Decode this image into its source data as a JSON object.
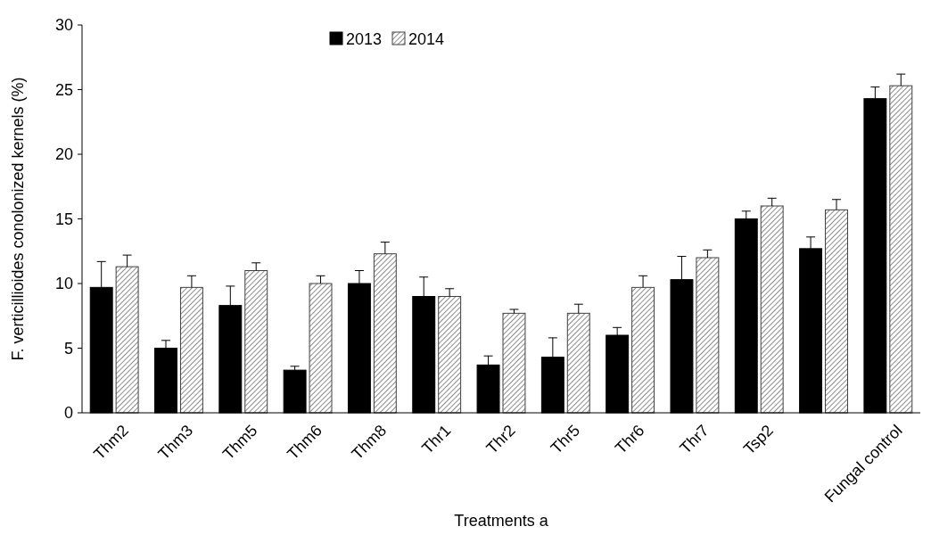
{
  "chart_data": {
    "type": "bar",
    "xlabel": "Treatments a",
    "ylabel": "F. verticillioides conolonized kernels (%)",
    "categories": [
      "Thm2",
      "Thm3",
      "Thm5",
      "Thm6",
      "Thm8",
      "Thr1",
      "Thr2",
      "Thr5",
      "Thr6",
      "Thr7",
      "Tsp2",
      null,
      "Fungal control"
    ],
    "series": [
      {
        "name": "2013",
        "color": "#000000",
        "values": [
          9.7,
          5.0,
          8.3,
          3.3,
          10.0,
          9.0,
          3.7,
          4.3,
          6.0,
          10.3,
          15.0,
          12.7,
          24.3
        ],
        "errors": [
          [
            9.7,
            11.7
          ],
          [
            5.0,
            5.6
          ],
          [
            8.3,
            9.8
          ],
          [
            3.3,
            3.6
          ],
          [
            10.0,
            11.0
          ],
          [
            9.0,
            10.5
          ],
          [
            3.7,
            4.4
          ],
          [
            4.3,
            5.8
          ],
          [
            6.0,
            6.6
          ],
          [
            10.3,
            12.1
          ],
          [
            15.0,
            15.6
          ],
          [
            12.7,
            13.6
          ],
          [
            24.3,
            25.2
          ]
        ]
      },
      {
        "name": "2014",
        "color": "#404040",
        "values": [
          11.3,
          9.7,
          11.0,
          10.0,
          12.3,
          9.0,
          7.7,
          7.7,
          9.7,
          12.0,
          16.0,
          15.7,
          25.3
        ],
        "errors": [
          [
            11.3,
            12.2
          ],
          [
            9.7,
            10.6
          ],
          [
            11.0,
            11.6
          ],
          [
            10.0,
            10.6
          ],
          [
            12.3,
            13.2
          ],
          [
            9.0,
            9.6
          ],
          [
            7.7,
            8.0
          ],
          [
            7.7,
            8.4
          ],
          [
            9.7,
            10.6
          ],
          [
            12.0,
            12.6
          ],
          [
            16.0,
            16.6
          ],
          [
            15.7,
            16.5
          ],
          [
            25.3,
            26.2
          ]
        ]
      }
    ],
    "ylim": [
      0,
      30
    ],
    "yticks": [
      0,
      5,
      10,
      15,
      20,
      25,
      30
    ],
    "grid": false,
    "legend": "top"
  }
}
